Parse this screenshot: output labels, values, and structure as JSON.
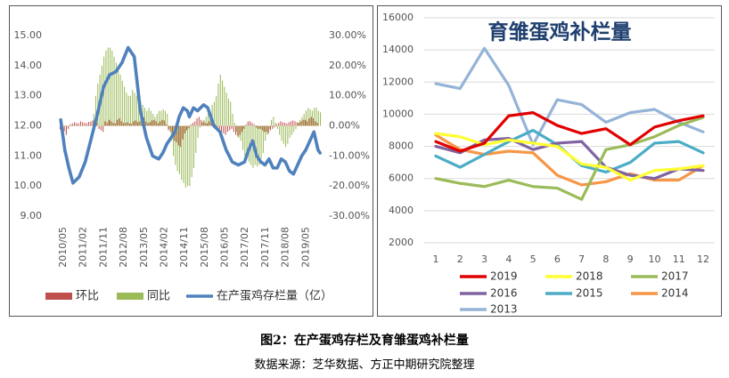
{
  "figure": {
    "caption": "图2：在产蛋鸡存栏及育雏蛋鸡补栏量",
    "source": "数据来源：芝华数据、方正中期研究院整理"
  },
  "chart_data": [
    {
      "type": "combo",
      "title": "",
      "x_tick_labels": [
        "2010/05",
        "2011/02",
        "2011/11",
        "2012/08",
        "2013/05",
        "2014/02",
        "2014/11",
        "2015/08",
        "2016/05",
        "2017/02",
        "2017/11",
        "2018/08",
        "2019/05"
      ],
      "y_left": {
        "ticks": [
          "15.00",
          "14.00",
          "13.00",
          "12.00",
          "11.00",
          "10.00",
          "9.00"
        ],
        "lim": [
          9,
          15
        ]
      },
      "y_right": {
        "ticks": [
          "30.00%",
          "20.00%",
          "10.00%",
          "0.00%",
          "-10.00%",
          "-20.00%",
          "-30.00%"
        ],
        "lim": [
          -30,
          30
        ]
      },
      "legend": [
        "环比",
        "同比",
        "在产蛋鸡存栏量（亿）"
      ],
      "legend_position": "bottom",
      "series": [
        {
          "name": "环比",
          "kind": "bar",
          "axis": "right",
          "color": "#c0504d",
          "values": [
            -1.2,
            -2.5,
            -1.8,
            -3.0,
            -1.0,
            0.5,
            0.8,
            1.2,
            1.0,
            0.8,
            1.5,
            1.2,
            1.0,
            0.9,
            1.3,
            1.5,
            1.8,
            2.0,
            0.9,
            -1.0,
            -1.5,
            -2.0,
            1.5,
            1.0,
            2.0,
            1.5,
            1.0,
            0.8,
            2.0,
            2.5,
            1.5,
            0.9,
            1.0,
            1.2,
            0.8,
            0.7,
            1.5,
            1.8,
            1.2,
            1.5,
            2.2,
            2.8,
            1.5,
            1.0,
            1.2,
            1.8,
            2.0,
            1.5,
            0.8,
            1.5,
            2.0,
            1.8,
            0.5,
            -1.5,
            -2.0,
            -3.5,
            -5.0,
            -5.5,
            -6.5,
            -7.0,
            -4.5,
            -2.5,
            -1.5,
            -0.8,
            0.5,
            1.0,
            1.5,
            2.5,
            3.0,
            2.0,
            1.5,
            1.0,
            0.8,
            1.5,
            2.0,
            0.9,
            0.5,
            -0.5,
            -1.0,
            -2.0,
            -2.5,
            -3.0,
            -2.0,
            -1.5,
            -1.0,
            -2.0,
            -3.0,
            -3.5,
            -3.0,
            -2.0,
            -1.0,
            0.5,
            1.5,
            1.5,
            1.0,
            0.5,
            -0.5,
            -1.0,
            -1.0,
            -1.5,
            -2.0,
            -2.0,
            -2.5,
            -1.5,
            -1.0,
            -0.5,
            0.5,
            1.0,
            1.5,
            1.2,
            1.0,
            0.8,
            1.2,
            1.5,
            1.8,
            1.5,
            1.2,
            1.0,
            1.5,
            2.0,
            2.0,
            1.5,
            2.5,
            3.0,
            2.5,
            1.5,
            1.0
          ]
        },
        {
          "name": "同比",
          "kind": "bar",
          "axis": "right",
          "color": "#9bbb59",
          "values": [
            0,
            0,
            0,
            0,
            0,
            0,
            0,
            0,
            0,
            0,
            0,
            0,
            0,
            0,
            0,
            0,
            4.0,
            10.0,
            14.0,
            17.0,
            20.0,
            23.0,
            25.0,
            26.0,
            26.0,
            25.0,
            23.0,
            21.0,
            19.0,
            17.0,
            15.0,
            13.0,
            11.0,
            10.0,
            10.0,
            12.0,
            11.0,
            10.0,
            9.0,
            8.0,
            7.0,
            6.0,
            5.0,
            6.0,
            5.0,
            4.0,
            3.0,
            4.0,
            5.0,
            5.0,
            5.5,
            5.0,
            4.0,
            -1.0,
            -5.0,
            -10.0,
            -13.0,
            -15.0,
            -16.0,
            -18.0,
            -19.0,
            -20.5,
            -20.0,
            -20.0,
            -17.0,
            -14.0,
            -9.0,
            -4.0,
            -0.5,
            1.0,
            2.0,
            3.0,
            4.0,
            5.0,
            7.0,
            8.0,
            10.0,
            14.0,
            17.0,
            15.0,
            13.0,
            11.0,
            9.0,
            8.0,
            4.0,
            1.0,
            -2.0,
            -4.0,
            -5.0,
            -8.0,
            -10.0,
            -11.0,
            -12.0,
            -13.0,
            -14.0,
            -13.0,
            -13.5,
            -13.0,
            -11.0,
            -9.0,
            -5.0,
            -3.0,
            -1.0,
            2.0,
            3.0,
            1.0,
            -1.0,
            -3.0,
            -5.0,
            -6.0,
            -7.0,
            -6.0,
            -4.0,
            -3.0,
            -2.0,
            -1.0,
            1.0,
            2.0,
            3.0,
            4.0,
            5.0,
            6.0,
            5.5,
            5.0,
            6.0,
            6.0,
            5.0,
            4.5
          ]
        },
        {
          "name": "在产蛋鸡存栏量（亿）",
          "kind": "line",
          "axis": "left",
          "color": "#4f81bd",
          "x": [
            0,
            2,
            4,
            6,
            9,
            12,
            15,
            18,
            21,
            24,
            27,
            30,
            33,
            36,
            39,
            42,
            45,
            48,
            50,
            52,
            54,
            56,
            58,
            60,
            62,
            63,
            65,
            67,
            70,
            72,
            75,
            78,
            81,
            84,
            87,
            90,
            92,
            94,
            96,
            98,
            100,
            102,
            104,
            106,
            108,
            110,
            112,
            114,
            116,
            118,
            120,
            122,
            124,
            125,
            126,
            127
          ],
          "y": [
            12.2,
            11.2,
            10.6,
            10.1,
            10.3,
            10.8,
            11.6,
            12.4,
            13.3,
            13.7,
            13.8,
            14.1,
            14.6,
            14.3,
            12.5,
            11.6,
            11.0,
            10.9,
            11.1,
            11.4,
            11.6,
            11.8,
            12.3,
            12.6,
            12.5,
            12.3,
            12.6,
            12.5,
            12.7,
            12.6,
            12.0,
            11.8,
            11.2,
            10.8,
            10.7,
            10.8,
            11.2,
            11.5,
            11.0,
            10.8,
            10.7,
            10.9,
            10.6,
            10.6,
            10.9,
            10.8,
            10.5,
            10.4,
            10.7,
            11.0,
            11.2,
            11.5,
            11.8,
            11.5,
            11.2,
            11.1
          ]
        }
      ]
    },
    {
      "type": "line",
      "title": "育雏蛋鸡补栏量",
      "categories": [
        "1",
        "2",
        "3",
        "4",
        "5",
        "6",
        "7",
        "8",
        "9",
        "10",
        "11",
        "12"
      ],
      "ylim": [
        2000,
        16000
      ],
      "yticks": [
        "16000",
        "14000",
        "12000",
        "10000",
        "8000",
        "6000",
        "4000",
        "2000"
      ],
      "legend_position": "bottom",
      "series": [
        {
          "name": "2019",
          "color": "#e00000",
          "values": [
            8300,
            7700,
            8200,
            9900,
            10100,
            9300,
            8800,
            9100,
            8100,
            9200,
            9600,
            9900
          ]
        },
        {
          "name": "2018",
          "color": "#ffff33",
          "values": [
            8800,
            8600,
            8100,
            8400,
            8200,
            8000,
            6900,
            6700,
            5900,
            6500,
            6600,
            6800
          ]
        },
        {
          "name": "2017",
          "color": "#9bbb59",
          "values": [
            6000,
            5700,
            5500,
            5900,
            5500,
            5400,
            4700,
            7800,
            8100,
            8600,
            9300,
            9800
          ]
        },
        {
          "name": "2016",
          "color": "#8064a2",
          "values": [
            8000,
            7600,
            8400,
            8500,
            7800,
            8200,
            8300,
            6700,
            6200,
            6000,
            6600,
            6500
          ]
        },
        {
          "name": "2015",
          "color": "#4bacc6",
          "values": [
            7400,
            6700,
            7500,
            8300,
            9000,
            8100,
            6800,
            6400,
            7000,
            8200,
            8300,
            7600
          ]
        },
        {
          "name": "2014",
          "color": "#f79646",
          "values": [
            8700,
            7800,
            7500,
            7700,
            7600,
            6200,
            5600,
            5800,
            6300,
            5900,
            5900,
            6800
          ]
        },
        {
          "name": "2013",
          "color": "#95b3d7",
          "values": [
            11900,
            11600,
            14100,
            11800,
            8100,
            10900,
            10600,
            9500,
            10100,
            10300,
            9500,
            8900
          ]
        }
      ]
    }
  ]
}
